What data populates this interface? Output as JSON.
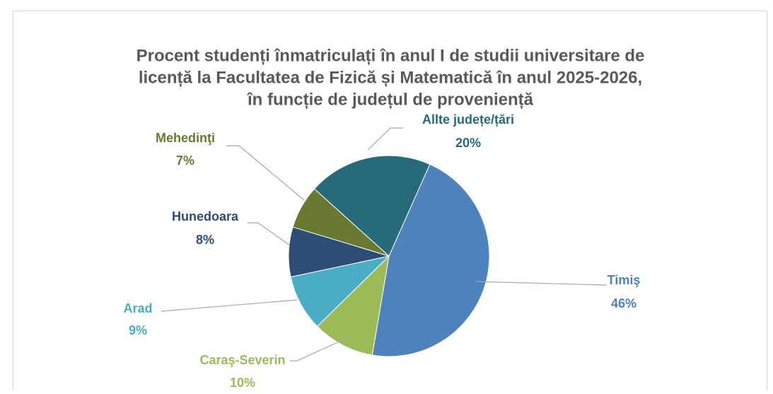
{
  "chart_data": {
    "type": "pie",
    "title": [
      "Procent studenți înmatriculați în anul I de studii universitare de",
      "licență la Facultatea de Fizică și Matematică în anul 2025-2026,",
      "în funcție de județul de proveniență"
    ],
    "categories": [
      "Timiş",
      "Caraş-Severin",
      "Arad",
      "Hunedoara",
      "Mehedinţi",
      "Allte județe/țări"
    ],
    "values": [
      46,
      10,
      9,
      8,
      7,
      20
    ],
    "value_labels": [
      "46%",
      "10%",
      "9%",
      "8%",
      "7%",
      "20%"
    ],
    "colors": [
      "#4f81bd",
      "#9bbb59",
      "#4bacc6",
      "#2c4d75",
      "#687a31",
      "#276a7c"
    ]
  }
}
